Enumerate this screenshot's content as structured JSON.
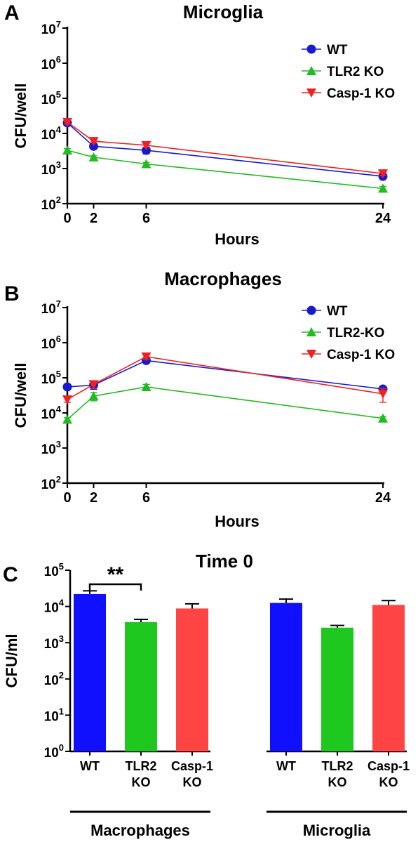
{
  "chart_data": [
    {
      "panel_letter": "A",
      "type": "line",
      "title": "Microglia",
      "xlabel": "Hours",
      "ylabel": "CFU/well",
      "x": [
        0,
        2,
        6,
        24
      ],
      "xlim": [
        0,
        24
      ],
      "ylim": [
        100,
        10000000
      ],
      "yscale": "log",
      "y_ticks": [
        {
          "base": "10",
          "exp": "2",
          "value": 100
        },
        {
          "base": "10",
          "exp": "3",
          "value": 1000
        },
        {
          "base": "10",
          "exp": "4",
          "value": 10000
        },
        {
          "base": "10",
          "exp": "5",
          "value": 100000
        },
        {
          "base": "10",
          "exp": "6",
          "value": 1000000
        },
        {
          "base": "10",
          "exp": "7",
          "value": 10000000
        }
      ],
      "x_ticks": [
        "0",
        "2",
        "6",
        "24"
      ],
      "legend_position": "top-right",
      "series": [
        {
          "name": "WT",
          "color": "#1a1acc",
          "marker": "circle",
          "values": [
            20000,
            4300,
            3300,
            600
          ],
          "errors": [
            2000,
            400,
            700,
            80
          ]
        },
        {
          "name": "TLR2 KO",
          "color": "#22bb22",
          "marker": "triangle-up",
          "values": [
            3300,
            2100,
            1350,
            270
          ],
          "errors": [
            400,
            200,
            150,
            40
          ]
        },
        {
          "name": "Casp-1 KO",
          "color": "#ee2222",
          "marker": "triangle-down",
          "values": [
            21000,
            6000,
            4600,
            720
          ],
          "errors": [
            2000,
            600,
            500,
            80
          ]
        }
      ]
    },
    {
      "panel_letter": "B",
      "type": "line",
      "title": "Macrophages",
      "xlabel": "Hours",
      "ylabel": "CFU/well",
      "x": [
        0,
        2,
        6,
        24
      ],
      "xlim": [
        0,
        24
      ],
      "ylim": [
        100,
        10000000
      ],
      "yscale": "log",
      "y_ticks": [
        {
          "base": "10",
          "exp": "2",
          "value": 100
        },
        {
          "base": "10",
          "exp": "3",
          "value": 1000
        },
        {
          "base": "10",
          "exp": "4",
          "value": 10000
        },
        {
          "base": "10",
          "exp": "5",
          "value": 100000
        },
        {
          "base": "10",
          "exp": "6",
          "value": 1000000
        },
        {
          "base": "10",
          "exp": "7",
          "value": 10000000
        }
      ],
      "x_ticks": [
        "0",
        "2",
        "6",
        "24"
      ],
      "legend_position": "top-right",
      "series": [
        {
          "name": "WT",
          "color": "#1a1acc",
          "marker": "circle",
          "values": [
            55000,
            62000,
            310000,
            48000
          ],
          "errors": [
            8000,
            15000,
            40000,
            5000
          ]
        },
        {
          "name": "TLR2-KO",
          "color": "#22bb22",
          "marker": "triangle-up",
          "values": [
            6500,
            30000,
            55000,
            7000
          ],
          "errors": [
            800,
            8000,
            10000,
            900
          ]
        },
        {
          "name": "Casp-1 KO",
          "color": "#ee2222",
          "marker": "triangle-down",
          "values": [
            24000,
            65000,
            400000,
            35000
          ],
          "errors": [
            4000,
            15000,
            60000,
            15000
          ]
        }
      ]
    },
    {
      "panel_letter": "C",
      "type": "bar",
      "title": "Time 0",
      "ylabel": "CFU/ml",
      "ylim": [
        1,
        100000
      ],
      "yscale": "log",
      "y_ticks": [
        {
          "base": "10",
          "exp": "0",
          "value": 1
        },
        {
          "base": "10",
          "exp": "1",
          "value": 10
        },
        {
          "base": "10",
          "exp": "2",
          "value": 100
        },
        {
          "base": "10",
          "exp": "3",
          "value": 1000
        },
        {
          "base": "10",
          "exp": "4",
          "value": 10000
        },
        {
          "base": "10",
          "exp": "5",
          "value": 100000
        }
      ],
      "groups": [
        {
          "name": "Macrophages",
          "bars": [
            {
              "label_lines": [
                "WT"
              ],
              "value": 22000,
              "error": 5000,
              "color": "#1010ff"
            },
            {
              "label_lines": [
                "TLR2",
                "KO"
              ],
              "value": 3700,
              "error": 700,
              "color": "#1ec81e"
            },
            {
              "label_lines": [
                "Casp-1",
                "KO"
              ],
              "value": 8800,
              "error": 3000,
              "color": "#ff4444"
            }
          ]
        },
        {
          "name": "Microglia",
          "bars": [
            {
              "label_lines": [
                "WT"
              ],
              "value": 12500,
              "error": 3500,
              "color": "#1010ff"
            },
            {
              "label_lines": [
                "TLR2",
                "KO"
              ],
              "value": 2600,
              "error": 400,
              "color": "#1ec81e"
            },
            {
              "label_lines": [
                "Casp-1",
                "KO"
              ],
              "value": 11000,
              "error": 3500,
              "color": "#ff4444"
            }
          ]
        }
      ],
      "significance": [
        {
          "label": "**",
          "from_group": 0,
          "from_bar": 0,
          "to_group": 0,
          "to_bar": 1
        }
      ]
    }
  ]
}
